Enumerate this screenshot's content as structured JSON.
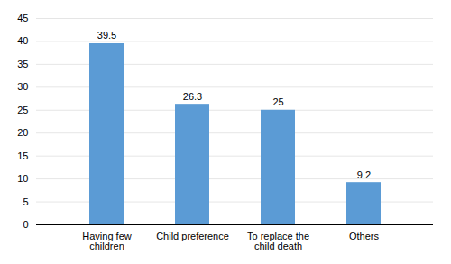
{
  "chart_data": {
    "type": "bar",
    "categories": [
      "Having few\nchildren",
      "Child preference",
      "To replace the\nchild death",
      "Others"
    ],
    "values": [
      39.5,
      26.3,
      25,
      9.2
    ],
    "color": "#5B9BD5",
    "ylim": [
      0,
      45
    ],
    "yticks": [
      0,
      5,
      10,
      15,
      20,
      25,
      30,
      35,
      40,
      45
    ],
    "grid": true,
    "data_labels": true
  }
}
